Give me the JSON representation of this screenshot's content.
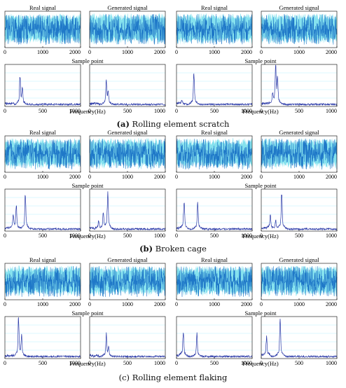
{
  "figure": {
    "captions": [
      {
        "label": "(a)",
        "text": " Rolling element scratch"
      },
      {
        "label": "(b)",
        "text": " Broken cage"
      },
      {
        "label": "",
        "text": "(c) Rolling element flaking"
      }
    ]
  },
  "chart_data": [
    {
      "type": "line",
      "group": "a",
      "panels": [
        {
          "kind": "time",
          "title": "Real signal",
          "xticks": [
            "0",
            "1000",
            "2000"
          ],
          "xlim": [
            0,
            2000
          ]
        },
        {
          "kind": "time",
          "title": "Generated signal",
          "xticks": [
            "0",
            "1000",
            "2000"
          ],
          "xlim": [
            0,
            2000
          ]
        },
        {
          "kind": "time",
          "title": "Real signal",
          "xticks": [
            "0",
            "1000",
            "2000"
          ],
          "xlim": [
            0,
            2000
          ]
        },
        {
          "kind": "time",
          "title": "Generated signal",
          "xticks": [
            "0",
            "1000",
            "2000"
          ],
          "xlim": [
            0,
            2000
          ]
        },
        {
          "kind": "freq",
          "xticks": [
            "0",
            "500",
            "1000"
          ],
          "xlim": [
            0,
            1000
          ],
          "peaks": [
            [
              200,
              0.62
            ],
            [
              230,
              0.35
            ]
          ]
        },
        {
          "kind": "freq",
          "xticks": [
            "0",
            "500",
            "1000"
          ],
          "xlim": [
            0,
            1000
          ],
          "peaks": [
            [
              220,
              0.55
            ],
            [
              245,
              0.25
            ]
          ]
        },
        {
          "kind": "freq",
          "xticks": [
            "0",
            "500",
            "1000"
          ],
          "xlim": [
            0,
            1000
          ],
          "peaks": [
            [
              230,
              0.75
            ],
            [
              70,
              0.08
            ]
          ]
        },
        {
          "kind": "freq",
          "xticks": [
            "0",
            "500",
            "1000"
          ],
          "xlim": [
            0,
            1000
          ],
          "peaks": [
            [
              190,
              0.92
            ],
            [
              215,
              0.52
            ],
            [
              150,
              0.2
            ]
          ]
        }
      ],
      "xlabels": [
        "Sample point",
        "Frequency(Hz)"
      ]
    },
    {
      "type": "line",
      "group": "b",
      "panels": [
        {
          "kind": "time",
          "title": "Real signal",
          "xticks": [
            "0",
            "1000",
            "2000"
          ],
          "xlim": [
            0,
            2000
          ]
        },
        {
          "kind": "time",
          "title": "Generated signal",
          "xticks": [
            "0",
            "1000",
            "2000"
          ],
          "xlim": [
            0,
            2000
          ]
        },
        {
          "kind": "time",
          "title": "Real signal",
          "xticks": [
            "0",
            "1000",
            "2000"
          ],
          "xlim": [
            0,
            2000
          ]
        },
        {
          "kind": "time",
          "title": "Generated signal",
          "xticks": [
            "0",
            "1000",
            "2000"
          ],
          "xlim": [
            0,
            2000
          ]
        },
        {
          "kind": "freq",
          "xticks": [
            "0",
            "500",
            "1000"
          ],
          "xlim": [
            0,
            1000
          ],
          "peaks": [
            [
              150,
              0.55
            ],
            [
              270,
              0.85
            ],
            [
              110,
              0.3
            ]
          ]
        },
        {
          "kind": "freq",
          "xticks": [
            "0",
            "500",
            "1000"
          ],
          "xlim": [
            0,
            1000
          ],
          "peaks": [
            [
              240,
              0.9
            ],
            [
              180,
              0.38
            ],
            [
              120,
              0.18
            ]
          ]
        },
        {
          "kind": "freq",
          "xticks": [
            "0",
            "500",
            "1000"
          ],
          "xlim": [
            0,
            1000
          ],
          "peaks": [
            [
              100,
              0.65
            ],
            [
              280,
              0.6
            ]
          ]
        },
        {
          "kind": "freq",
          "xticks": [
            "0",
            "500",
            "1000"
          ],
          "xlim": [
            0,
            1000
          ],
          "peaks": [
            [
              270,
              0.82
            ],
            [
              120,
              0.3
            ],
            [
              190,
              0.2
            ]
          ]
        }
      ],
      "xlabels": [
        "Sample point",
        "Frequency(Hz)"
      ]
    },
    {
      "type": "line",
      "group": "c",
      "panels": [
        {
          "kind": "time",
          "title": "Real signal",
          "xticks": [
            "0",
            "1000",
            "2000"
          ],
          "xlim": [
            0,
            2000
          ]
        },
        {
          "kind": "time",
          "title": "Generated signal",
          "xticks": [
            "0",
            "1000",
            "2000"
          ],
          "xlim": [
            0,
            2000
          ]
        },
        {
          "kind": "time",
          "title": "Real signal",
          "xticks": [
            "0",
            "1000",
            "2000"
          ],
          "xlim": [
            0,
            2000
          ]
        },
        {
          "kind": "time",
          "title": "Generated signal",
          "xticks": [
            "0",
            "1000",
            "2000"
          ],
          "xlim": [
            0,
            2000
          ]
        },
        {
          "kind": "freq",
          "xticks": [
            "0",
            "500",
            "1000"
          ],
          "xlim": [
            0,
            1000
          ],
          "peaks": [
            [
              180,
              0.85
            ],
            [
              220,
              0.45
            ]
          ]
        },
        {
          "kind": "freq",
          "xticks": [
            "0",
            "500",
            "1000"
          ],
          "xlim": [
            0,
            1000
          ],
          "peaks": [
            [
              220,
              0.48
            ],
            [
              250,
              0.2
            ]
          ]
        },
        {
          "kind": "freq",
          "xticks": [
            "0",
            "500",
            "1000"
          ],
          "xlim": [
            0,
            1000
          ],
          "peaks": [
            [
              90,
              0.6
            ],
            [
              270,
              0.5
            ]
          ]
        },
        {
          "kind": "freq",
          "xticks": [
            "0",
            "500",
            "1000"
          ],
          "xlim": [
            0,
            1000
          ],
          "peaks": [
            [
              250,
              0.9
            ],
            [
              70,
              0.45
            ]
          ]
        }
      ],
      "xlabels": [
        "Sample point",
        "Frequency(Hz)"
      ]
    }
  ],
  "colors": {
    "signal": "#1f78c8",
    "signal_light": "#21c8e0",
    "spectrum": "#2b3aa8",
    "axis": "#000000"
  }
}
